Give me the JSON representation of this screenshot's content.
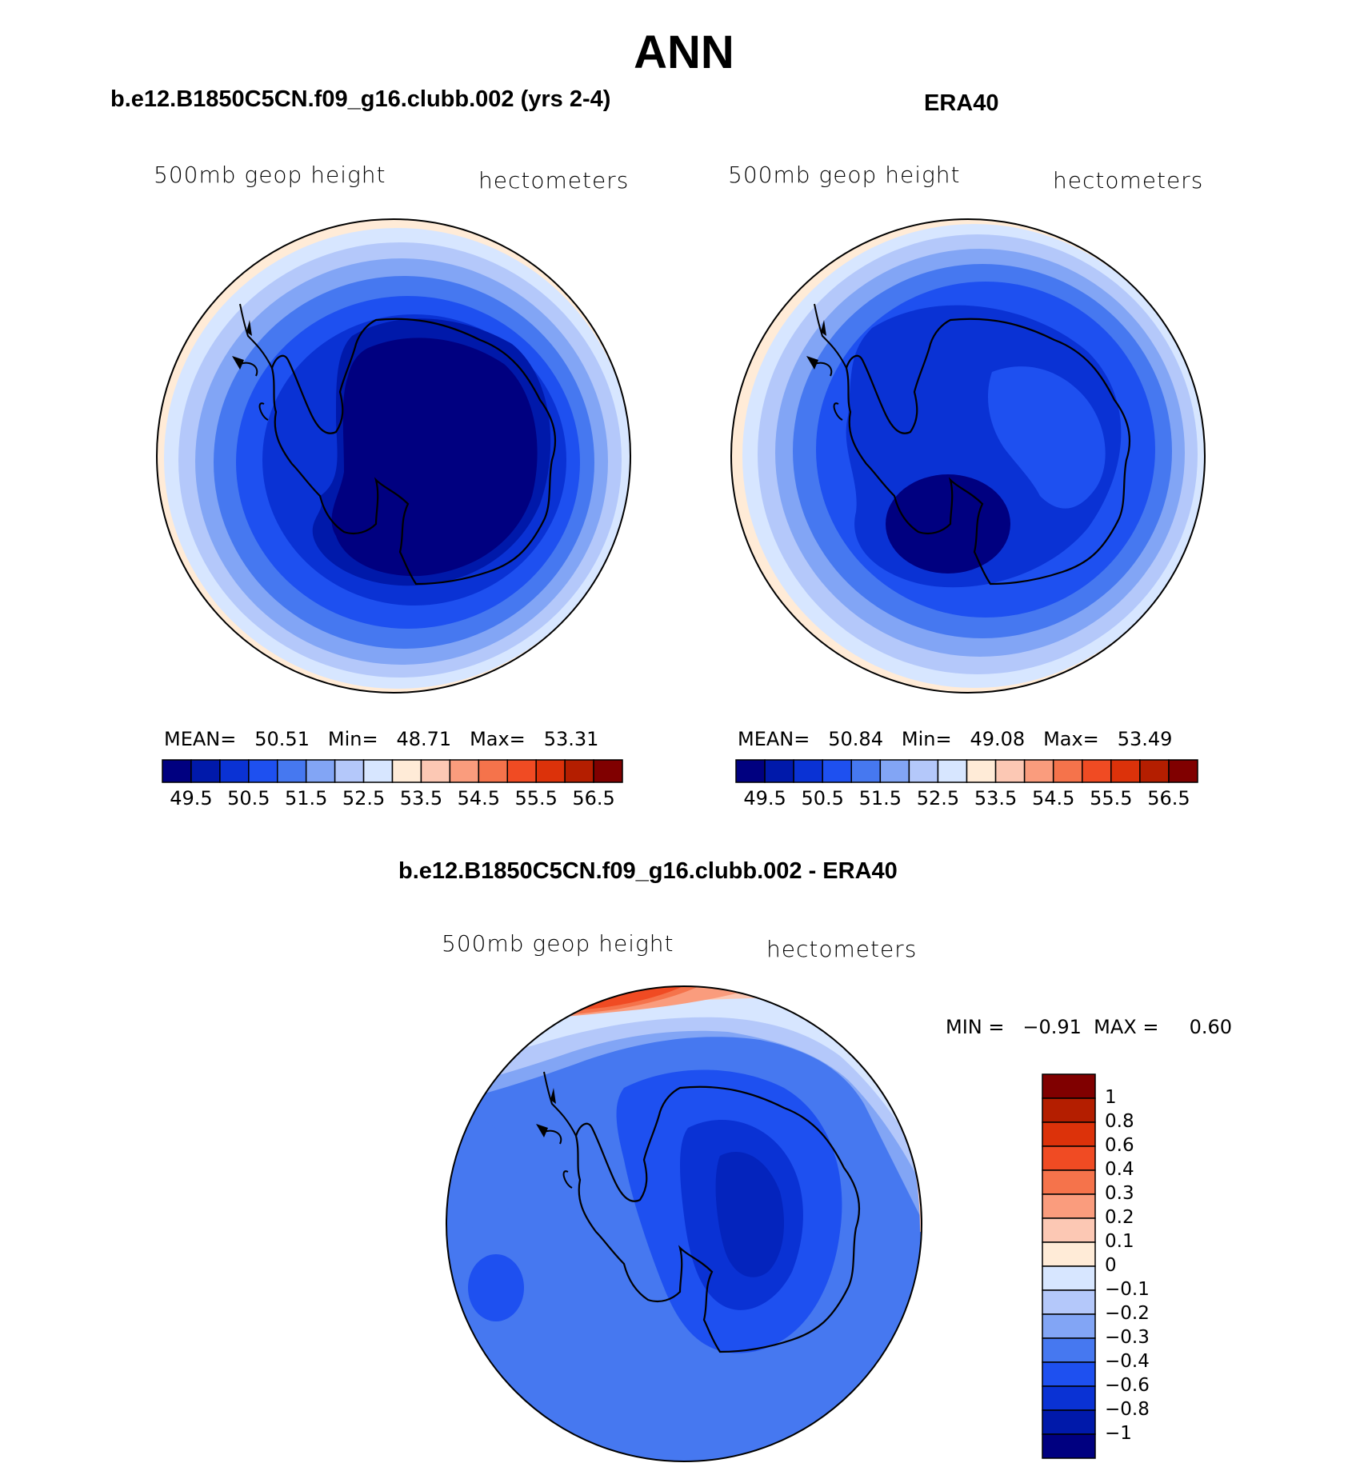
{
  "title": "ANN",
  "panels": [
    {
      "id": "model",
      "title": "b.e12.B1850C5CN.f09_g16.clubb.002 (yrs 2-4)",
      "left_label": "500mb  geop  height",
      "right_label": "hectometers",
      "stats": {
        "mean_label": "MEAN=",
        "mean": "50.51",
        "min_label": "Min=",
        "min": "48.71",
        "max_label": "Max=",
        "max": "53.31"
      }
    },
    {
      "id": "obs",
      "title": "ERA40",
      "left_label": "500mb  geop  height",
      "right_label": "hectometers",
      "stats": {
        "mean_label": "MEAN=",
        "mean": "50.84",
        "min_label": "Min=",
        "min": "49.08",
        "max_label": "Max=",
        "max": "53.49"
      }
    }
  ],
  "diff_panel": {
    "title": "b.e12.B1850C5CN.f09_g16.clubb.002 - ERA40",
    "left_label": "500mb  geop  height",
    "right_label": "hectometers",
    "minmax_label": "MIN =   −0.91  MAX =     0.60"
  },
  "colorbar_h": {
    "colors": [
      "#000080",
      "#0019aa",
      "#0a32d4",
      "#1e50f0",
      "#4678f0",
      "#82a5f5",
      "#b4c8fa",
      "#d7e6ff",
      "#ffebd7",
      "#fcc8b4",
      "#fa9c7d",
      "#f5734b",
      "#f04b23",
      "#dc320a",
      "#b41e00",
      "#800000"
    ],
    "labels": [
      "49.5",
      "50.5",
      "51.5",
      "52.5",
      "53.5",
      "54.5",
      "55.5",
      "56.5"
    ]
  },
  "colorbar_v": {
    "colors": [
      "#800000",
      "#b41e00",
      "#dc320a",
      "#f04b23",
      "#f5734b",
      "#fa9c7d",
      "#fcc8b4",
      "#ffebd7",
      "#d7e6ff",
      "#b4c8fa",
      "#82a5f5",
      "#4678f0",
      "#1e50f0",
      "#0a32d4",
      "#0019aa",
      "#000080"
    ],
    "labels": [
      "1",
      "0.8",
      "0.6",
      "0.4",
      "0.3",
      "0.2",
      "0.1",
      "0",
      "−0.1",
      "−0.2",
      "−0.3",
      "−0.4",
      "−0.6",
      "−0.8",
      "−1"
    ]
  }
}
